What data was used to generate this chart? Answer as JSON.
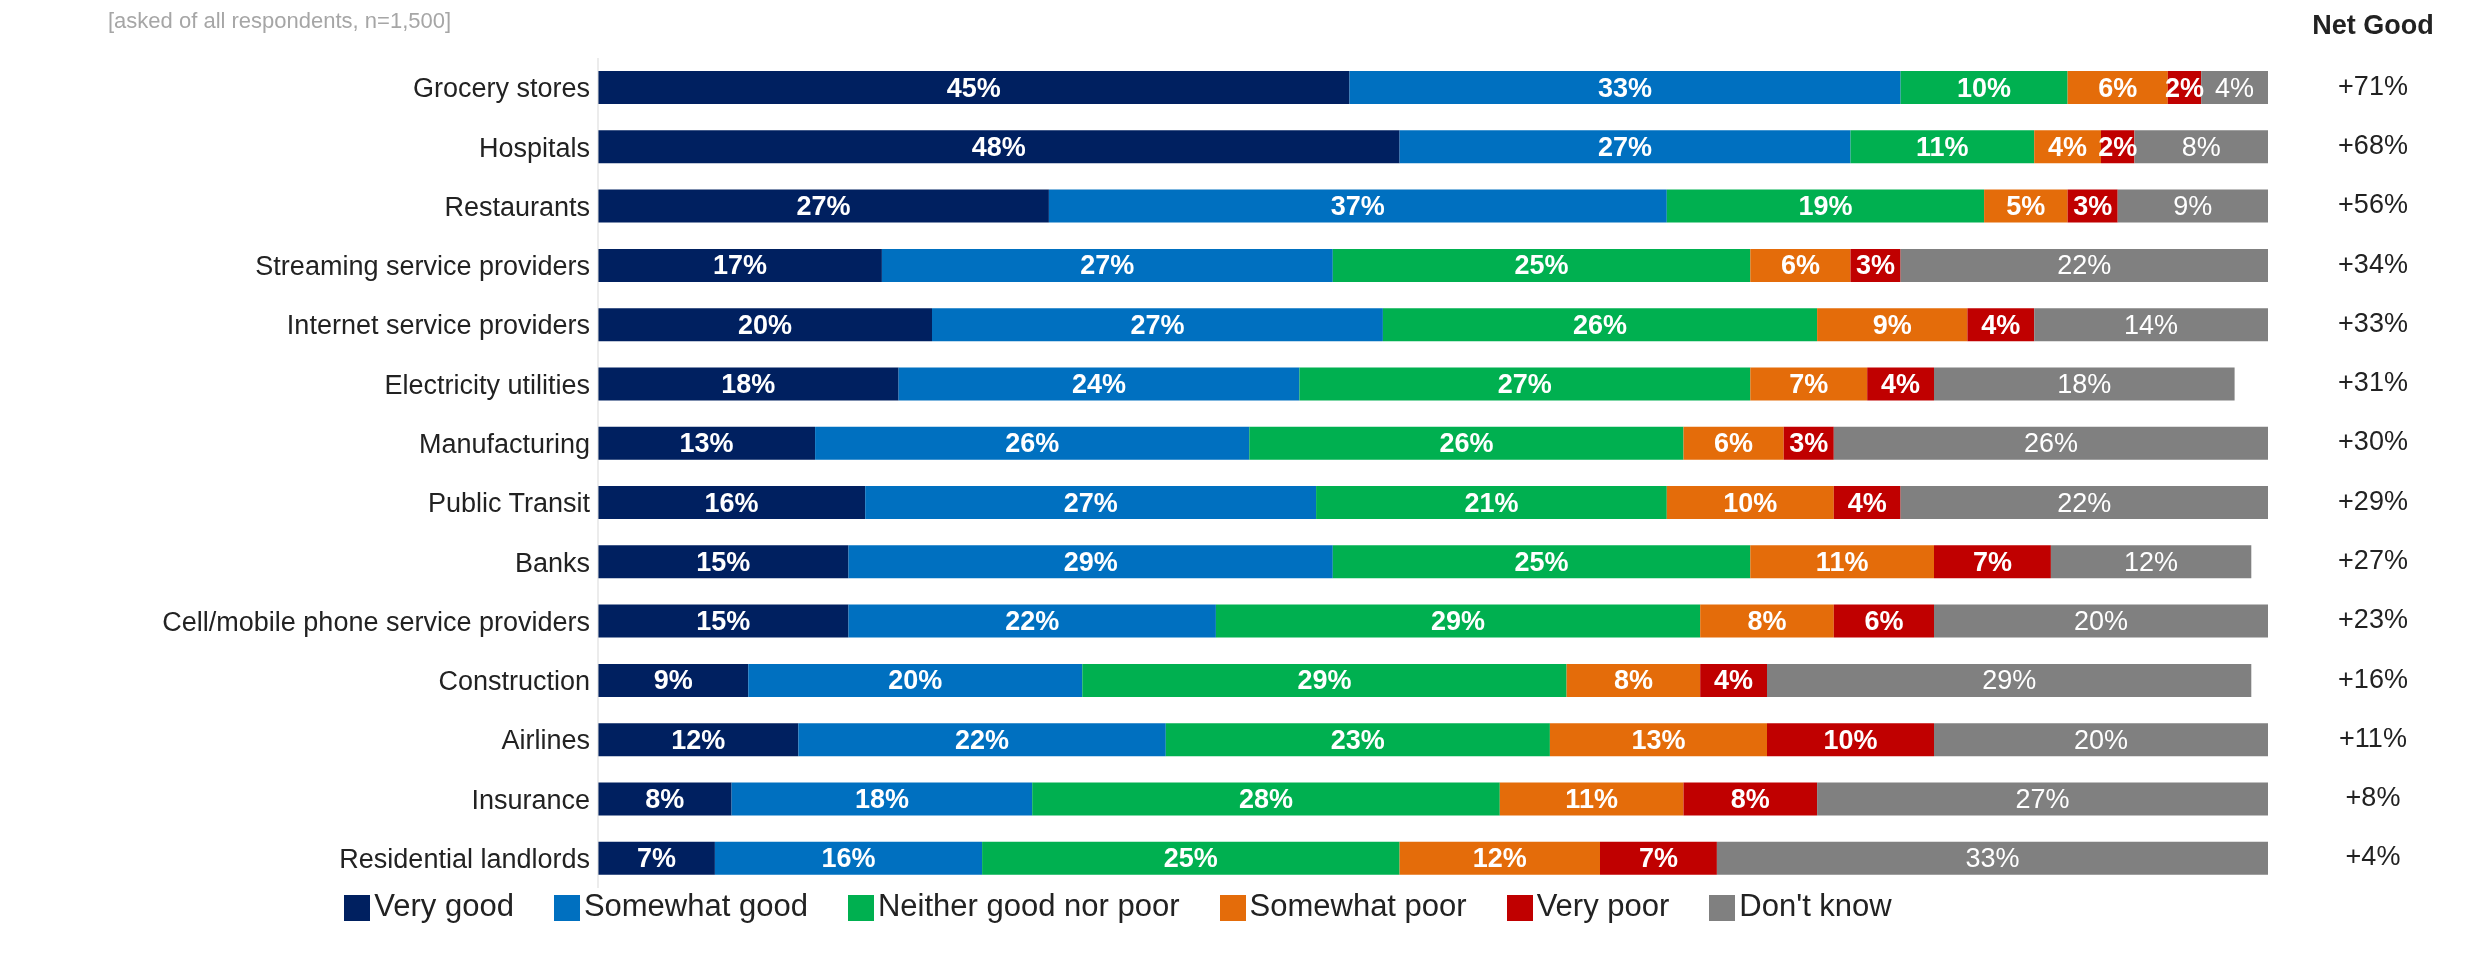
{
  "chart_data": {
    "type": "bar",
    "orientation": "horizontal",
    "stacked": true,
    "subtitle": "[asked of all respondents, n=1,500]",
    "legend": "bottom",
    "categories": [
      "Grocery stores",
      "Hospitals",
      "Restaurants",
      "Streaming service providers",
      "Internet service providers",
      "Electricity utilities",
      "Manufacturing",
      "Public Transit",
      "Banks",
      "Cell/mobile phone service providers",
      "Construction",
      "Airlines",
      "Insurance",
      "Residential landlords"
    ],
    "series": [
      {
        "name": "Very good",
        "color": "#002060",
        "values": [
          45,
          48,
          27,
          17,
          20,
          18,
          13,
          16,
          15,
          15,
          9,
          12,
          8,
          7
        ],
        "value_labels": [
          "45%",
          "48%",
          "27%",
          "17%",
          "20%",
          "18%",
          "13%",
          "16%",
          "15%",
          "15%",
          "9%",
          "12%",
          "8%",
          "7%"
        ]
      },
      {
        "name": "Somewhat good",
        "color": "#0070c0",
        "values": [
          33,
          27,
          37,
          27,
          27,
          24,
          26,
          27,
          29,
          22,
          20,
          22,
          18,
          16
        ],
        "value_labels": [
          "33%",
          "27%",
          "37%",
          "27%",
          "27%",
          "24%",
          "26%",
          "27%",
          "29%",
          "22%",
          "20%",
          "22%",
          "18%",
          "16%"
        ]
      },
      {
        "name": "Neither good nor poor",
        "color": "#00b050",
        "values": [
          10,
          11,
          19,
          25,
          26,
          27,
          26,
          21,
          25,
          29,
          29,
          23,
          28,
          25
        ],
        "value_labels": [
          "10%",
          "11%",
          "19%",
          "25%",
          "26%",
          "27%",
          "26%",
          "21%",
          "25%",
          "29%",
          "29%",
          "23%",
          "28%",
          "25%"
        ]
      },
      {
        "name": "Somewhat poor",
        "color": "#e46c0a",
        "values": [
          6,
          4,
          5,
          6,
          9,
          7,
          6,
          10,
          11,
          8,
          8,
          13,
          11,
          12
        ],
        "value_labels": [
          "6%",
          "4%",
          "5%",
          "6%",
          "9%",
          "7%",
          "6%",
          "10%",
          "11%",
          "8%",
          "8%",
          "13%",
          "11%",
          "12%"
        ]
      },
      {
        "name": "Very poor",
        "color": "#c00000",
        "values": [
          2,
          2,
          3,
          3,
          4,
          4,
          3,
          4,
          7,
          6,
          4,
          10,
          8,
          7
        ],
        "value_labels": [
          "2%",
          "2%",
          "3%",
          "3%",
          "4%",
          "4%",
          "3%",
          "4%",
          "7%",
          "6%",
          "4%",
          "10%",
          "8%",
          "7%"
        ]
      },
      {
        "name": "Don't know",
        "color": "#808080",
        "values": [
          4,
          8,
          9,
          22,
          14,
          18,
          26,
          22,
          12,
          20,
          29,
          20,
          27,
          33
        ],
        "value_labels": [
          "4%",
          "8%",
          "9%",
          "22%",
          "14%",
          "18%",
          "26%",
          "22%",
          "12%",
          "20%",
          "29%",
          "20%",
          "27%",
          "33%"
        ]
      }
    ],
    "annotations": [
      "Net Good",
      "+71%",
      "+68%",
      "+56%",
      "+34%",
      "+33%",
      "+31%",
      "+30%",
      "+29%",
      "+27%",
      "+23%",
      "+16%",
      "+11%",
      "+8%",
      "+4%"
    ]
  }
}
